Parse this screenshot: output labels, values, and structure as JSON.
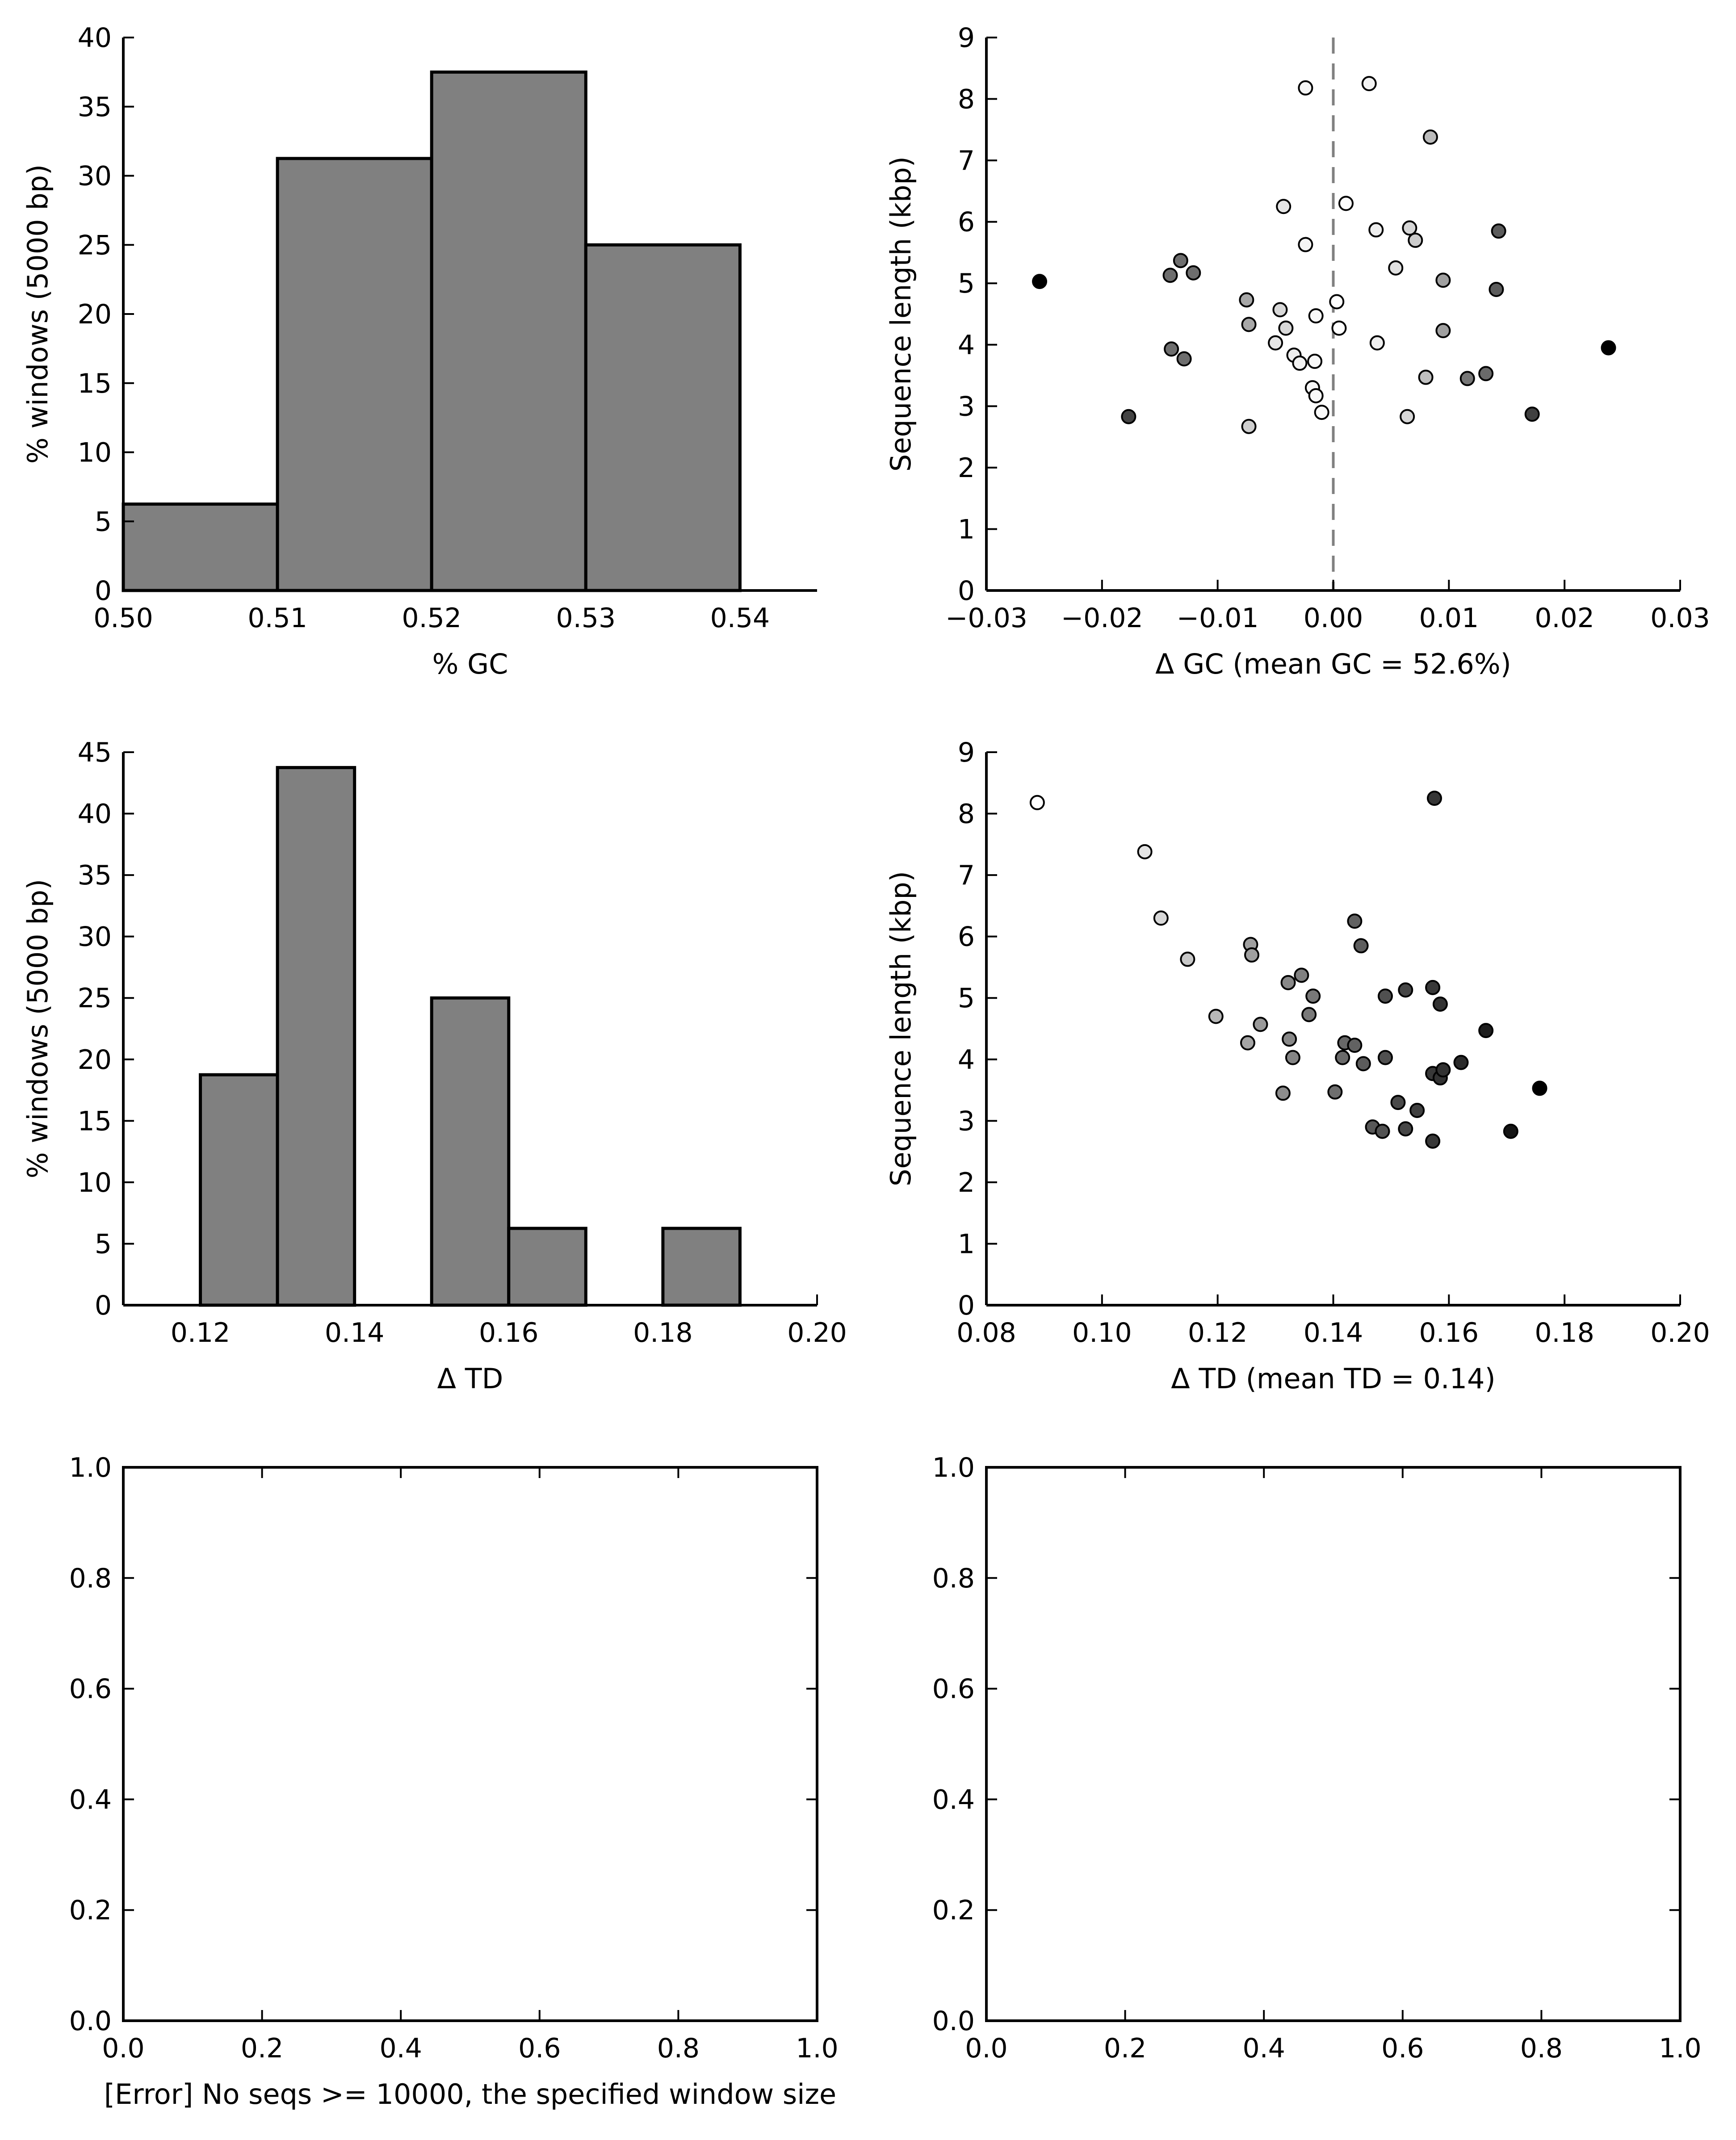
{
  "chart_data": [
    {
      "id": "gc-hist",
      "type": "bar",
      "xlabel": "% GC",
      "ylabel": "% windows (5000 bp)",
      "xlim": [
        0.5,
        0.545
      ],
      "ylim": [
        0,
        40
      ],
      "xticks": [
        0.5,
        0.51,
        0.52,
        0.53,
        0.54
      ],
      "xtick_labels": [
        "0.50",
        "0.51",
        "0.52",
        "0.53",
        "0.54"
      ],
      "yticks": [
        0,
        5,
        10,
        15,
        20,
        25,
        30,
        35,
        40
      ],
      "ytick_labels": [
        "0",
        "5",
        "10",
        "15",
        "20",
        "25",
        "30",
        "35",
        "40"
      ],
      "bin_edges": [
        [
          0.5,
          0.51
        ],
        [
          0.51,
          0.52
        ],
        [
          0.52,
          0.53
        ],
        [
          0.53,
          0.54
        ]
      ],
      "values": [
        6.25,
        31.25,
        37.5,
        25.0
      ],
      "bar_color": "#808080"
    },
    {
      "id": "gc-scatter",
      "type": "scatter",
      "xlabel": "Δ GC (mean GC = 52.6%)",
      "ylabel": "Sequence length (kbp)",
      "xlim": [
        -0.03,
        0.03
      ],
      "ylim": [
        0,
        9
      ],
      "xticks": [
        -0.03,
        -0.02,
        -0.01,
        0.0,
        0.01,
        0.02,
        0.03
      ],
      "xtick_labels": [
        "−0.03",
        "−0.02",
        "−0.01",
        "0.00",
        "0.01",
        "0.02",
        "0.03"
      ],
      "yticks": [
        0,
        1,
        2,
        3,
        4,
        5,
        6,
        7,
        8,
        9
      ],
      "ytick_labels": [
        "0",
        "1",
        "2",
        "3",
        "4",
        "5",
        "6",
        "7",
        "8",
        "9"
      ],
      "vline_x": 0.0,
      "points": [
        {
          "x": -0.0254,
          "y": 5.03,
          "c": "#000000"
        },
        {
          "x": -0.0177,
          "y": 2.83,
          "c": "#444444"
        },
        {
          "x": -0.0141,
          "y": 5.13,
          "c": "#6e6e6e"
        },
        {
          "x": -0.0132,
          "y": 5.37,
          "c": "#6e6e6e"
        },
        {
          "x": -0.0121,
          "y": 5.17,
          "c": "#6e6e6e"
        },
        {
          "x": -0.014,
          "y": 3.93,
          "c": "#6e6e6e"
        },
        {
          "x": -0.0129,
          "y": 3.77,
          "c": "#6e6e6e"
        },
        {
          "x": -0.0075,
          "y": 4.73,
          "c": "#a8a8a8"
        },
        {
          "x": -0.0073,
          "y": 4.33,
          "c": "#a8a8a8"
        },
        {
          "x": -0.0073,
          "y": 2.67,
          "c": "#cfcfcf"
        },
        {
          "x": -0.0046,
          "y": 4.57,
          "c": "#d8d8d8"
        },
        {
          "x": -0.0041,
          "y": 4.27,
          "c": "#d8d8d8"
        },
        {
          "x": -0.005,
          "y": 4.03,
          "c": "#e6e6e6"
        },
        {
          "x": -0.0043,
          "y": 6.25,
          "c": "#e6e6e6"
        },
        {
          "x": -0.0034,
          "y": 3.83,
          "c": "#eeeeee"
        },
        {
          "x": -0.0029,
          "y": 3.7,
          "c": "#f2f2f2"
        },
        {
          "x": -0.0024,
          "y": 8.18,
          "c": "#f5f5f5"
        },
        {
          "x": -0.0024,
          "y": 5.63,
          "c": "#f5f5f5"
        },
        {
          "x": -0.0015,
          "y": 4.47,
          "c": "#f8f8f8"
        },
        {
          "x": -0.0016,
          "y": 3.73,
          "c": "#f8f8f8"
        },
        {
          "x": -0.0018,
          "y": 3.3,
          "c": "#f8f8f8"
        },
        {
          "x": -0.0015,
          "y": 3.17,
          "c": "#f8f8f8"
        },
        {
          "x": -0.001,
          "y": 2.9,
          "c": "#fafafa"
        },
        {
          "x": 0.0003,
          "y": 4.7,
          "c": "#ffffff"
        },
        {
          "x": 0.0005,
          "y": 4.27,
          "c": "#ffffff"
        },
        {
          "x": 0.0011,
          "y": 6.3,
          "c": "#fcfcfc"
        },
        {
          "x": 0.0031,
          "y": 8.25,
          "c": "#f4f4f4"
        },
        {
          "x": 0.0037,
          "y": 5.87,
          "c": "#eeeeee"
        },
        {
          "x": 0.0038,
          "y": 4.03,
          "c": "#eeeeee"
        },
        {
          "x": 0.0054,
          "y": 5.25,
          "c": "#e0e0e0"
        },
        {
          "x": 0.0064,
          "y": 2.83,
          "c": "#d6d6d6"
        },
        {
          "x": 0.0066,
          "y": 5.9,
          "c": "#d6d6d6"
        },
        {
          "x": 0.0071,
          "y": 5.7,
          "c": "#cccccc"
        },
        {
          "x": 0.008,
          "y": 3.47,
          "c": "#c0c0c0"
        },
        {
          "x": 0.0084,
          "y": 7.38,
          "c": "#bbbbbb"
        },
        {
          "x": 0.0095,
          "y": 5.05,
          "c": "#a0a0a0"
        },
        {
          "x": 0.0095,
          "y": 4.23,
          "c": "#a0a0a0"
        },
        {
          "x": 0.0116,
          "y": 3.45,
          "c": "#777777"
        },
        {
          "x": 0.0132,
          "y": 3.53,
          "c": "#6a6a6a"
        },
        {
          "x": 0.0141,
          "y": 4.9,
          "c": "#5c5c5c"
        },
        {
          "x": 0.0143,
          "y": 5.85,
          "c": "#5c5c5c"
        },
        {
          "x": 0.0172,
          "y": 2.87,
          "c": "#404040"
        },
        {
          "x": 0.0238,
          "y": 3.95,
          "c": "#000000"
        }
      ]
    },
    {
      "id": "td-hist",
      "type": "bar",
      "xlabel": "Δ TD",
      "ylabel": "% windows (5000 bp)",
      "xlim": [
        0.11,
        0.2
      ],
      "ylim": [
        0,
        45
      ],
      "xticks": [
        0.12,
        0.14,
        0.16,
        0.18,
        0.2
      ],
      "xtick_labels": [
        "0.12",
        "0.14",
        "0.16",
        "0.18",
        "0.20"
      ],
      "yticks": [
        0,
        5,
        10,
        15,
        20,
        25,
        30,
        35,
        40,
        45
      ],
      "ytick_labels": [
        "0",
        "5",
        "10",
        "15",
        "20",
        "25",
        "30",
        "35",
        "40",
        "45"
      ],
      "bin_edges": [
        [
          0.12,
          0.13
        ],
        [
          0.13,
          0.14
        ],
        [
          0.15,
          0.16
        ],
        [
          0.16,
          0.17
        ],
        [
          0.18,
          0.19
        ]
      ],
      "values": [
        18.75,
        43.75,
        25.0,
        6.25,
        6.25
      ],
      "bar_color": "#808080"
    },
    {
      "id": "td-scatter",
      "type": "scatter",
      "xlabel": "Δ TD (mean TD = 0.14)",
      "ylabel": "Sequence length (kbp)",
      "xlim": [
        0.08,
        0.2
      ],
      "ylim": [
        0,
        9
      ],
      "xticks": [
        0.08,
        0.1,
        0.12,
        0.14,
        0.16,
        0.18,
        0.2
      ],
      "xtick_labels": [
        "0.08",
        "0.10",
        "0.12",
        "0.14",
        "0.16",
        "0.18",
        "0.20"
      ],
      "yticks": [
        0,
        1,
        2,
        3,
        4,
        5,
        6,
        7,
        8,
        9
      ],
      "ytick_labels": [
        "0",
        "1",
        "2",
        "3",
        "4",
        "5",
        "6",
        "7",
        "8",
        "9"
      ],
      "points": [
        {
          "x": 0.0888,
          "y": 8.18,
          "c": "#ffffff"
        },
        {
          "x": 0.1074,
          "y": 7.38,
          "c": "#e4e4e4"
        },
        {
          "x": 0.1102,
          "y": 6.3,
          "c": "#d8d8d8"
        },
        {
          "x": 0.1148,
          "y": 5.63,
          "c": "#c8c8c8"
        },
        {
          "x": 0.1197,
          "y": 4.7,
          "c": "#b8b8b8"
        },
        {
          "x": 0.1252,
          "y": 4.27,
          "c": "#a4a4a4"
        },
        {
          "x": 0.1257,
          "y": 5.87,
          "c": "#a0a0a0"
        },
        {
          "x": 0.1259,
          "y": 5.7,
          "c": "#a0a0a0"
        },
        {
          "x": 0.1274,
          "y": 4.57,
          "c": "#9a9a9a"
        },
        {
          "x": 0.1313,
          "y": 3.45,
          "c": "#8c8c8c"
        },
        {
          "x": 0.1322,
          "y": 5.25,
          "c": "#888888"
        },
        {
          "x": 0.1324,
          "y": 4.33,
          "c": "#888888"
        },
        {
          "x": 0.133,
          "y": 4.03,
          "c": "#858585"
        },
        {
          "x": 0.1345,
          "y": 5.37,
          "c": "#808080"
        },
        {
          "x": 0.1358,
          "y": 4.73,
          "c": "#7a7a7a"
        },
        {
          "x": 0.1365,
          "y": 5.03,
          "c": "#787878"
        },
        {
          "x": 0.1403,
          "y": 3.47,
          "c": "#6e6e6e"
        },
        {
          "x": 0.1416,
          "y": 4.03,
          "c": "#6a6a6a"
        },
        {
          "x": 0.142,
          "y": 4.27,
          "c": "#686868"
        },
        {
          "x": 0.1437,
          "y": 6.25,
          "c": "#626262"
        },
        {
          "x": 0.1437,
          "y": 4.23,
          "c": "#626262"
        },
        {
          "x": 0.1448,
          "y": 5.85,
          "c": "#5e5e5e"
        },
        {
          "x": 0.1452,
          "y": 3.93,
          "c": "#5c5c5c"
        },
        {
          "x": 0.1468,
          "y": 2.9,
          "c": "#575757"
        },
        {
          "x": 0.1485,
          "y": 2.83,
          "c": "#525252"
        },
        {
          "x": 0.149,
          "y": 5.03,
          "c": "#505050"
        },
        {
          "x": 0.149,
          "y": 4.03,
          "c": "#505050"
        },
        {
          "x": 0.1512,
          "y": 3.3,
          "c": "#4a4a4a"
        },
        {
          "x": 0.1525,
          "y": 5.13,
          "c": "#464646"
        },
        {
          "x": 0.1525,
          "y": 2.87,
          "c": "#464646"
        },
        {
          "x": 0.1545,
          "y": 3.17,
          "c": "#404040"
        },
        {
          "x": 0.1572,
          "y": 5.17,
          "c": "#383838"
        },
        {
          "x": 0.1572,
          "y": 3.77,
          "c": "#383838"
        },
        {
          "x": 0.1572,
          "y": 2.67,
          "c": "#383838"
        },
        {
          "x": 0.1575,
          "y": 8.25,
          "c": "#363636"
        },
        {
          "x": 0.1585,
          "y": 4.9,
          "c": "#333333"
        },
        {
          "x": 0.1585,
          "y": 3.7,
          "c": "#333333"
        },
        {
          "x": 0.159,
          "y": 3.83,
          "c": "#323232"
        },
        {
          "x": 0.1621,
          "y": 3.95,
          "c": "#2a2a2a"
        },
        {
          "x": 0.1664,
          "y": 4.47,
          "c": "#1e1e1e"
        },
        {
          "x": 0.1707,
          "y": 2.83,
          "c": "#141414"
        },
        {
          "x": 0.1757,
          "y": 3.53,
          "c": "#000000"
        }
      ]
    },
    {
      "id": "empty-left",
      "type": "scatter",
      "xlabel": "[Error] No seqs >= 10000, the specified window size",
      "ylabel": "",
      "xlim": [
        0,
        1
      ],
      "ylim": [
        0,
        1
      ],
      "xticks": [
        0,
        0.2,
        0.4,
        0.6,
        0.8,
        1.0
      ],
      "xtick_labels": [
        "0.0",
        "0.2",
        "0.4",
        "0.6",
        "0.8",
        "1.0"
      ],
      "yticks": [
        0,
        0.2,
        0.4,
        0.6,
        0.8,
        1.0
      ],
      "ytick_labels": [
        "0.0",
        "0.2",
        "0.4",
        "0.6",
        "0.8",
        "1.0"
      ],
      "points": []
    },
    {
      "id": "empty-right",
      "type": "scatter",
      "xlabel": "",
      "ylabel": "",
      "xlim": [
        0,
        1
      ],
      "ylim": [
        0,
        1
      ],
      "xticks": [
        0,
        0.2,
        0.4,
        0.6,
        0.8,
        1.0
      ],
      "xtick_labels": [
        "0.0",
        "0.2",
        "0.4",
        "0.6",
        "0.8",
        "1.0"
      ],
      "yticks": [
        0,
        0.2,
        0.4,
        0.6,
        0.8,
        1.0
      ],
      "ytick_labels": [
        "0.0",
        "0.2",
        "0.4",
        "0.6",
        "0.8",
        "1.0"
      ],
      "points": []
    }
  ]
}
